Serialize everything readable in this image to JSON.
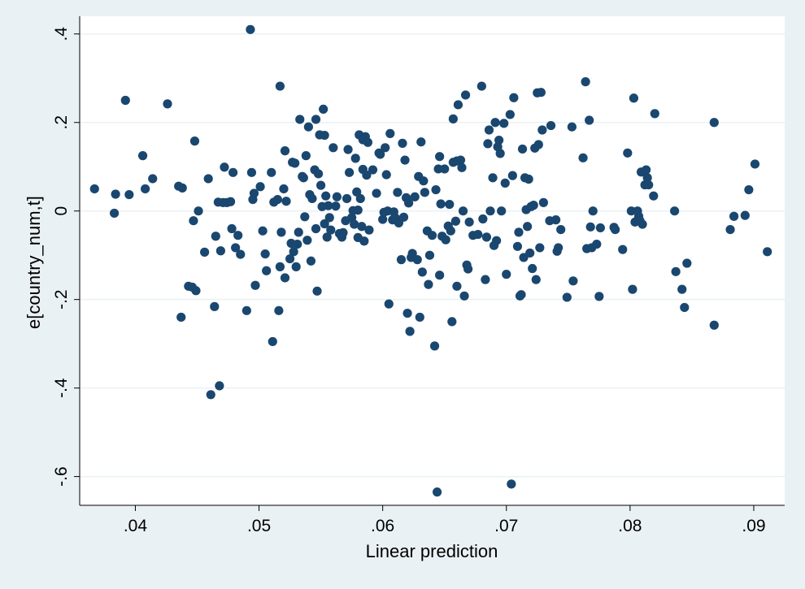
{
  "colors": {
    "page_background": "#eaf1f4",
    "plot_background": "#ffffff",
    "gridline": "#eaf1f4",
    "marker": "#1a476f",
    "axis": "#000000"
  },
  "chart_data": {
    "type": "scatter",
    "xlabel": "Linear prediction",
    "ylabel": "e[country_num,t]",
    "xlim": [
      0.0355,
      0.0925
    ],
    "ylim": [
      -0.665,
      0.44
    ],
    "x_ticks": [
      0.04,
      0.05,
      0.06,
      0.07,
      0.08,
      0.09
    ],
    "x_tick_labels": [
      ".04",
      ".05",
      ".06",
      ".07",
      ".08",
      ".09"
    ],
    "y_ticks": [
      0.4,
      0.2,
      0,
      -0.2,
      -0.4,
      -0.6
    ],
    "y_tick_labels": [
      ".4",
      ".2",
      "0",
      "-.2",
      "-.4",
      "-.6"
    ],
    "grid": "horizontal",
    "legend": "none",
    "series": [
      {
        "points": [
          [
            0.0367,
            0.05
          ],
          [
            0.0383,
            -0.005
          ],
          [
            0.0384,
            0.038
          ],
          [
            0.0392,
            0.25
          ],
          [
            0.0395,
            0.037
          ],
          [
            0.0406,
            0.125
          ],
          [
            0.0408,
            0.05
          ],
          [
            0.0414,
            0.073
          ],
          [
            0.0426,
            0.242
          ],
          [
            0.0435,
            0.056
          ],
          [
            0.0437,
            -0.24
          ],
          [
            0.0438,
            0.052
          ],
          [
            0.0443,
            -0.17
          ],
          [
            0.0446,
            -0.172
          ],
          [
            0.0447,
            -0.022
          ],
          [
            0.0448,
            0.158
          ],
          [
            0.0449,
            -0.18
          ],
          [
            0.0451,
            0.0
          ],
          [
            0.0456,
            -0.093
          ],
          [
            0.0459,
            0.073
          ],
          [
            0.0461,
            -0.415
          ],
          [
            0.0464,
            -0.216
          ],
          [
            0.0465,
            -0.057
          ],
          [
            0.0467,
            0.02
          ],
          [
            0.0468,
            -0.395
          ],
          [
            0.0469,
            -0.09
          ],
          [
            0.0471,
            0.019
          ],
          [
            0.0472,
            0.099
          ],
          [
            0.0474,
            0.019
          ],
          [
            0.0477,
            0.021
          ],
          [
            0.0478,
            -0.04
          ],
          [
            0.0479,
            0.087
          ],
          [
            0.0481,
            -0.083
          ],
          [
            0.0483,
            -0.055
          ],
          [
            0.0485,
            -0.098
          ],
          [
            0.049,
            -0.225
          ],
          [
            0.0493,
            0.41
          ],
          [
            0.0494,
            0.087
          ],
          [
            0.0495,
            0.026
          ],
          [
            0.0496,
            0.04
          ],
          [
            0.0497,
            -0.168
          ],
          [
            0.0501,
            0.055
          ],
          [
            0.0503,
            -0.045
          ],
          [
            0.0505,
            -0.097
          ],
          [
            0.0506,
            -0.135
          ],
          [
            0.051,
            0.087
          ],
          [
            0.0511,
            -0.295
          ],
          [
            0.0512,
            0.02
          ],
          [
            0.0515,
            0.026
          ],
          [
            0.0516,
            -0.225
          ],
          [
            0.0517,
            0.282
          ],
          [
            0.0517,
            -0.126
          ],
          [
            0.0518,
            -0.048
          ],
          [
            0.052,
            0.05
          ],
          [
            0.0521,
            0.136
          ],
          [
            0.0521,
            -0.151
          ],
          [
            0.0522,
            0.022
          ],
          [
            0.0525,
            -0.108
          ],
          [
            0.0526,
            -0.073
          ],
          [
            0.0527,
            0.11
          ],
          [
            0.0528,
            -0.092
          ],
          [
            0.0529,
            0.108
          ],
          [
            0.053,
            -0.126
          ],
          [
            0.0531,
            -0.075
          ],
          [
            0.0532,
            -0.048
          ],
          [
            0.0533,
            0.207
          ],
          [
            0.0535,
            0.078
          ],
          [
            0.0536,
            0.075
          ],
          [
            0.0537,
            -0.013
          ],
          [
            0.0538,
            0.125
          ],
          [
            0.0539,
            -0.066
          ],
          [
            0.054,
            0.19
          ],
          [
            0.0541,
            0.037
          ],
          [
            0.0542,
            -0.113
          ],
          [
            0.0543,
            0.028
          ],
          [
            0.0545,
            0.093
          ],
          [
            0.0546,
            -0.04
          ],
          [
            0.0546,
            0.207
          ],
          [
            0.0547,
            -0.181
          ],
          [
            0.0548,
            0.084
          ],
          [
            0.0549,
            0.172
          ],
          [
            0.055,
            0.058
          ],
          [
            0.0551,
            0.01
          ],
          [
            0.0552,
            0.23
          ],
          [
            0.0553,
            0.171
          ],
          [
            0.0553,
            -0.029
          ],
          [
            0.0554,
            0.034
          ],
          [
            0.0555,
            -0.059
          ],
          [
            0.0556,
            0.012
          ],
          [
            0.0557,
            -0.015
          ],
          [
            0.0558,
            -0.043
          ],
          [
            0.056,
            0.143
          ],
          [
            0.0562,
            0.011
          ],
          [
            0.0563,
            0.032
          ],
          [
            0.0565,
            -0.051
          ],
          [
            0.0567,
            -0.059
          ],
          [
            0.0568,
            -0.049
          ],
          [
            0.057,
            -0.022
          ],
          [
            0.0571,
            0.028
          ],
          [
            0.0572,
            0.139
          ],
          [
            0.0573,
            0.087
          ],
          [
            0.0575,
            -0.015
          ],
          [
            0.0576,
            0.001
          ],
          [
            0.0577,
            -0.03
          ],
          [
            0.0578,
            0.119
          ],
          [
            0.0579,
            0.043
          ],
          [
            0.058,
            0.002
          ],
          [
            0.058,
            -0.06
          ],
          [
            0.0581,
            0.172
          ],
          [
            0.0582,
            0.028
          ],
          [
            0.0583,
            -0.035
          ],
          [
            0.0584,
            0.161
          ],
          [
            0.0584,
            0.094
          ],
          [
            0.0585,
            -0.068
          ],
          [
            0.0586,
            0.168
          ],
          [
            0.0587,
            0.081
          ],
          [
            0.0588,
            0.155
          ],
          [
            0.0589,
            -0.043
          ],
          [
            0.0592,
            0.093
          ],
          [
            0.0595,
            0.04
          ],
          [
            0.0597,
            0.131
          ],
          [
            0.0598,
            0.128
          ],
          [
            0.06,
            -0.019
          ],
          [
            0.0601,
            -0.003
          ],
          [
            0.0602,
            0.143
          ],
          [
            0.0603,
            0.082
          ],
          [
            0.0604,
            0.0
          ],
          [
            0.0605,
            -0.21
          ],
          [
            0.0606,
            0.175
          ],
          [
            0.0608,
            -0.02
          ],
          [
            0.0609,
            -0.002
          ],
          [
            0.061,
            -0.015
          ],
          [
            0.0612,
            0.042
          ],
          [
            0.0613,
            -0.027
          ],
          [
            0.0615,
            -0.11
          ],
          [
            0.0616,
            0.153
          ],
          [
            0.0617,
            -0.014
          ],
          [
            0.0618,
            0.115
          ],
          [
            0.0619,
            0.03
          ],
          [
            0.062,
            -0.231
          ],
          [
            0.0621,
            0.018
          ],
          [
            0.0622,
            -0.272
          ],
          [
            0.0623,
            -0.105
          ],
          [
            0.0624,
            -0.096
          ],
          [
            0.0626,
            0.032
          ],
          [
            0.0628,
            -0.11
          ],
          [
            0.0629,
            0.078
          ],
          [
            0.063,
            -0.24
          ],
          [
            0.0631,
            0.156
          ],
          [
            0.0632,
            -0.138
          ],
          [
            0.0633,
            0.068
          ],
          [
            0.0634,
            0.042
          ],
          [
            0.0636,
            -0.045
          ],
          [
            0.0637,
            -0.166
          ],
          [
            0.0638,
            -0.1
          ],
          [
            0.064,
            -0.055
          ],
          [
            0.0642,
            -0.305
          ],
          [
            0.0643,
            0.048
          ],
          [
            0.0644,
            -0.635
          ],
          [
            0.0645,
            0.095
          ],
          [
            0.0646,
            0.123
          ],
          [
            0.0646,
            -0.145
          ],
          [
            0.0647,
            0.016
          ],
          [
            0.0648,
            -0.057
          ],
          [
            0.065,
            0.095
          ],
          [
            0.0651,
            -0.065
          ],
          [
            0.0653,
            -0.034
          ],
          [
            0.0654,
            0.015
          ],
          [
            0.0655,
            -0.045
          ],
          [
            0.0656,
            -0.25
          ],
          [
            0.0657,
            0.208
          ],
          [
            0.0657,
            0.11
          ],
          [
            0.0659,
            -0.023
          ],
          [
            0.066,
            0.113
          ],
          [
            0.066,
            -0.17
          ],
          [
            0.0661,
            0.24
          ],
          [
            0.0663,
            0.115
          ],
          [
            0.0664,
            0.098
          ],
          [
            0.0665,
            0.0
          ],
          [
            0.0666,
            -0.192
          ],
          [
            0.0667,
            0.262
          ],
          [
            0.0668,
            -0.122
          ],
          [
            0.0669,
            -0.131
          ],
          [
            0.067,
            -0.025
          ],
          [
            0.0673,
            -0.055
          ],
          [
            0.0677,
            -0.053
          ],
          [
            0.068,
            0.282
          ],
          [
            0.0681,
            -0.018
          ],
          [
            0.0683,
            -0.155
          ],
          [
            0.0684,
            -0.059
          ],
          [
            0.0685,
            0.152
          ],
          [
            0.0686,
            0.183
          ],
          [
            0.0687,
            0.0
          ],
          [
            0.0689,
            0.075
          ],
          [
            0.069,
            -0.078
          ],
          [
            0.0691,
            0.2
          ],
          [
            0.0692,
            -0.067
          ],
          [
            0.0693,
            0.145
          ],
          [
            0.0694,
            0.16
          ],
          [
            0.0695,
            0.13
          ],
          [
            0.0696,
            0.0
          ],
          [
            0.0698,
            0.198
          ],
          [
            0.0699,
            0.063
          ],
          [
            0.07,
            -0.143
          ],
          [
            0.0703,
            0.218
          ],
          [
            0.0704,
            -0.617
          ],
          [
            0.0705,
            0.08
          ],
          [
            0.0706,
            0.256
          ],
          [
            0.0709,
            -0.08
          ],
          [
            0.071,
            -0.048
          ],
          [
            0.0711,
            -0.192
          ],
          [
            0.0712,
            -0.189
          ],
          [
            0.0713,
            0.14
          ],
          [
            0.0714,
            -0.105
          ],
          [
            0.0715,
            0.075
          ],
          [
            0.0716,
            0.003
          ],
          [
            0.0717,
            -0.035
          ],
          [
            0.0718,
            0.072
          ],
          [
            0.0719,
            -0.095
          ],
          [
            0.072,
            0.01
          ],
          [
            0.0721,
            -0.13
          ],
          [
            0.0722,
            0.013
          ],
          [
            0.0723,
            0.142
          ],
          [
            0.0724,
            -0.155
          ],
          [
            0.0725,
            0.267
          ],
          [
            0.0726,
            0.15
          ],
          [
            0.0727,
            -0.083
          ],
          [
            0.0728,
            0.268
          ],
          [
            0.0729,
            0.183
          ],
          [
            0.073,
            0.019
          ],
          [
            0.0735,
            -0.022
          ],
          [
            0.0736,
            0.193
          ],
          [
            0.074,
            -0.02
          ],
          [
            0.0741,
            -0.091
          ],
          [
            0.0742,
            -0.083
          ],
          [
            0.0744,
            -0.042
          ],
          [
            0.0749,
            -0.195
          ],
          [
            0.0753,
            0.19
          ],
          [
            0.0754,
            -0.158
          ],
          [
            0.0762,
            0.12
          ],
          [
            0.0764,
            0.292
          ],
          [
            0.0765,
            -0.085
          ],
          [
            0.0767,
            0.205
          ],
          [
            0.0768,
            -0.036
          ],
          [
            0.0769,
            -0.083
          ],
          [
            0.077,
            0.0
          ],
          [
            0.0773,
            -0.075
          ],
          [
            0.0775,
            -0.193
          ],
          [
            0.0776,
            -0.038
          ],
          [
            0.0787,
            -0.037
          ],
          [
            0.0788,
            -0.042
          ],
          [
            0.0794,
            -0.087
          ],
          [
            0.0798,
            0.131
          ],
          [
            0.0801,
            0.0
          ],
          [
            0.0802,
            -0.177
          ],
          [
            0.0803,
            0.255
          ],
          [
            0.0804,
            -0.025
          ],
          [
            0.0806,
            0.0
          ],
          [
            0.0807,
            -0.012
          ],
          [
            0.0808,
            -0.022
          ],
          [
            0.0809,
            0.088
          ],
          [
            0.081,
            -0.03
          ],
          [
            0.0812,
            0.059
          ],
          [
            0.0813,
            0.093
          ],
          [
            0.0814,
            0.075
          ],
          [
            0.0815,
            0.059
          ],
          [
            0.0819,
            0.034
          ],
          [
            0.082,
            0.22
          ],
          [
            0.0836,
            0.0
          ],
          [
            0.0837,
            -0.137
          ],
          [
            0.0842,
            -0.177
          ],
          [
            0.0844,
            -0.218
          ],
          [
            0.0846,
            -0.118
          ],
          [
            0.0868,
            -0.258
          ],
          [
            0.0868,
            0.2
          ],
          [
            0.0881,
            -0.042
          ],
          [
            0.0884,
            -0.012
          ],
          [
            0.0893,
            -0.01
          ],
          [
            0.0896,
            0.048
          ],
          [
            0.0901,
            0.106
          ],
          [
            0.0911,
            -0.092
          ]
        ]
      }
    ]
  }
}
